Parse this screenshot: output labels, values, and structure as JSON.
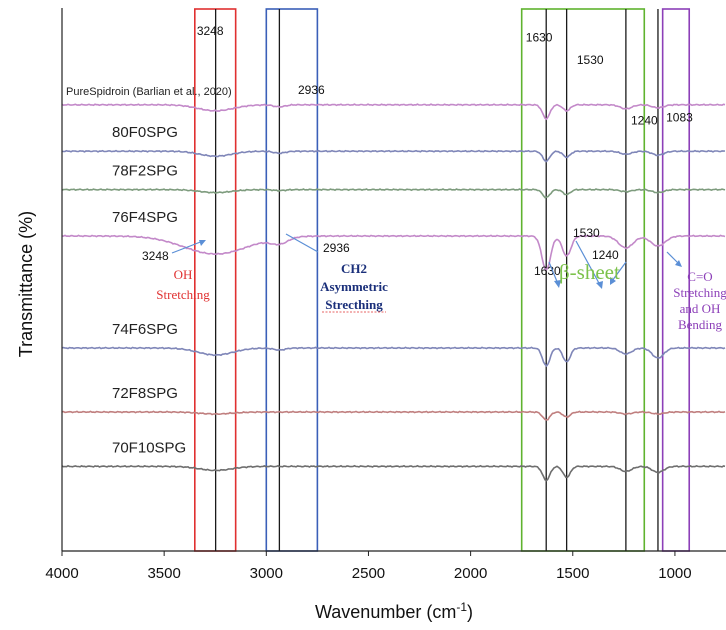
{
  "chart_data": {
    "type": "line",
    "xlabel_main": "Wavenumber (cm",
    "xlabel_sup": "-1",
    "xlabel_end": ")",
    "ylabel": "Transmittance (%)",
    "xlim": [
      4000,
      750
    ],
    "x_ticks": [
      "4000",
      "3500",
      "3000",
      "2500",
      "2000",
      "1500",
      "1000"
    ],
    "x_tick_values": [
      4000,
      3500,
      3000,
      2500,
      2000,
      1500,
      1000
    ],
    "series": [
      {
        "name": "PureSpidroin (Barlian et al., 2020)",
        "color": "#c389c9",
        "offset": 0.4,
        "features": [
          [
            3248,
            6,
            120
          ],
          [
            2936,
            2,
            40
          ],
          [
            1630,
            14,
            25
          ],
          [
            1530,
            6,
            25
          ],
          [
            1240,
            4,
            40
          ],
          [
            1083,
            3,
            40
          ]
        ]
      },
      {
        "name": "80F0SPG",
        "color": "#7f86b8",
        "offset": 1.85,
        "features": [
          [
            3248,
            5,
            110
          ],
          [
            2936,
            2,
            40
          ],
          [
            1630,
            10,
            25
          ],
          [
            1530,
            6,
            25
          ],
          [
            1240,
            3,
            40
          ],
          [
            1083,
            4,
            40
          ]
        ]
      },
      {
        "name": "78F2SPG",
        "color": "#7d9b7d",
        "offset": 3.05,
        "features": [
          [
            3248,
            3,
            110
          ],
          [
            2936,
            1,
            40
          ],
          [
            1630,
            8,
            25
          ],
          [
            1530,
            5,
            25
          ],
          [
            1240,
            2,
            40
          ],
          [
            1083,
            3,
            40
          ]
        ]
      },
      {
        "name": "76F4SPG",
        "color": "#c389c9",
        "offset": 4.5,
        "features": [
          [
            3248,
            18,
            220
          ],
          [
            2936,
            6,
            60
          ],
          [
            1630,
            34,
            30
          ],
          [
            1530,
            20,
            30
          ],
          [
            1240,
            12,
            50
          ],
          [
            1083,
            10,
            50
          ]
        ]
      },
      {
        "name": "74F6SPG",
        "color": "#7f86b8",
        "offset": 8.0,
        "features": [
          [
            3248,
            7,
            120
          ],
          [
            2936,
            2,
            40
          ],
          [
            1630,
            18,
            25
          ],
          [
            1530,
            14,
            25
          ],
          [
            1240,
            6,
            40
          ],
          [
            1083,
            10,
            40
          ]
        ]
      },
      {
        "name": "72F8SPG",
        "color": "#c07f7f",
        "offset": 10.0,
        "features": [
          [
            3248,
            2,
            110
          ],
          [
            1630,
            8,
            25
          ],
          [
            1530,
            5,
            25
          ],
          [
            1240,
            2,
            40
          ],
          [
            1083,
            2,
            40
          ]
        ]
      },
      {
        "name": "70F10SPG",
        "color": "#6e6e6e",
        "offset": 11.7,
        "features": [
          [
            3248,
            4,
            110
          ],
          [
            1630,
            14,
            25
          ],
          [
            1530,
            11,
            25
          ],
          [
            1240,
            5,
            40
          ],
          [
            1083,
            6,
            40
          ]
        ]
      }
    ],
    "vertical_lines": [
      3248,
      2936,
      1630,
      1530,
      1240,
      1083
    ],
    "highlight_boxes": [
      {
        "color": "#e03030",
        "from": 3350,
        "to": 3150
      },
      {
        "color": "#3a5fb8",
        "from": 3000,
        "to": 2750
      },
      {
        "color": "#5fb32e",
        "from": 1750,
        "to": 1150
      },
      {
        "color": "#8c3fb8",
        "from": 1060,
        "to": 930
      }
    ],
    "peak_labels_top": [
      {
        "text": "3248",
        "x": 3340,
        "level": 0
      },
      {
        "text": "2936",
        "x": 2845,
        "level": 1.85
      },
      {
        "text": "1630",
        "x": 1730,
        "level": 0.2
      },
      {
        "text": "1530",
        "x": 1480,
        "level": 0.9
      },
      {
        "text": "1240",
        "x": 1215,
        "level": 2.8
      },
      {
        "text": "1083",
        "x": 1043,
        "level": 2.7
      }
    ],
    "annotations": {
      "oh": {
        "peak": "3248",
        "line1": "OH",
        "line2": "Stretching",
        "color": "#e03030"
      },
      "ch2": {
        "peak": "2936",
        "line1": "CH2",
        "line2": "Asymmetric",
        "line3": "Strecthing",
        "color": "#1a2f7a"
      },
      "beta": {
        "peaks": [
          "1630",
          "1530",
          "1240"
        ],
        "label": "β-sheet",
        "color": "#7cc24a"
      },
      "co": {
        "peak": "1083",
        "line1": "C=O",
        "line2": "Stretching",
        "line3": "and OH",
        "line4": "Bending",
        "color": "#8c3fb8"
      }
    }
  }
}
